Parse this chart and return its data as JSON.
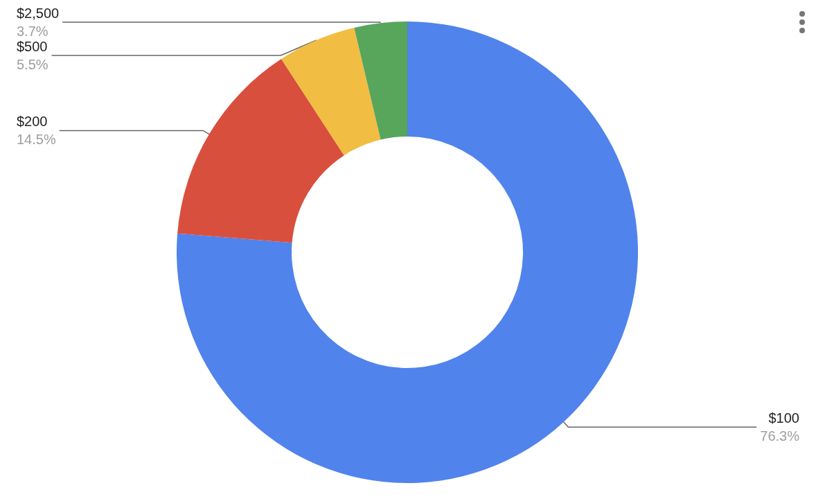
{
  "chart_data": {
    "type": "donut",
    "categories": [
      "$100",
      "$200",
      "$500",
      "$2,500"
    ],
    "values": [
      76.3,
      14.5,
      5.5,
      3.7
    ],
    "colors": [
      "#5083ec",
      "#d94f3d",
      "#f1bd42",
      "#58a55c"
    ],
    "value_labels": [
      "76.3%",
      "14.5%",
      "5.5%",
      "3.7%"
    ],
    "legend": false
  }
}
